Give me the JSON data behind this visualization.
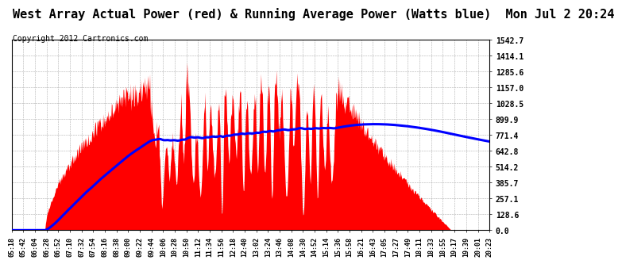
{
  "title": "West Array Actual Power (red) & Running Average Power (Watts blue)  Mon Jul 2 20:24",
  "copyright": "Copyright 2012 Cartronics.com",
  "y_ticks": [
    0.0,
    128.6,
    257.1,
    385.7,
    514.2,
    642.8,
    771.4,
    899.9,
    1028.5,
    1157.0,
    1285.6,
    1414.1,
    1542.7
  ],
  "y_max": 1542.7,
  "x_labels": [
    "05:18",
    "05:42",
    "06:04",
    "06:28",
    "06:52",
    "07:10",
    "07:32",
    "07:54",
    "08:16",
    "08:38",
    "09:00",
    "09:22",
    "09:44",
    "10:06",
    "10:28",
    "10:50",
    "11:12",
    "11:34",
    "11:56",
    "12:18",
    "12:40",
    "13:02",
    "13:24",
    "13:46",
    "14:08",
    "14:30",
    "14:52",
    "15:14",
    "15:36",
    "15:58",
    "16:21",
    "16:43",
    "17:05",
    "17:27",
    "17:49",
    "18:11",
    "18:33",
    "18:55",
    "19:17",
    "19:39",
    "20:01",
    "20:23"
  ],
  "bg_color": "#ffffff",
  "plot_bg_color": "#ffffff",
  "grid_color": "#999999",
  "red_color": "#ff0000",
  "blue_color": "#0000ff",
  "title_fontsize": 11,
  "copyright_fontsize": 7
}
